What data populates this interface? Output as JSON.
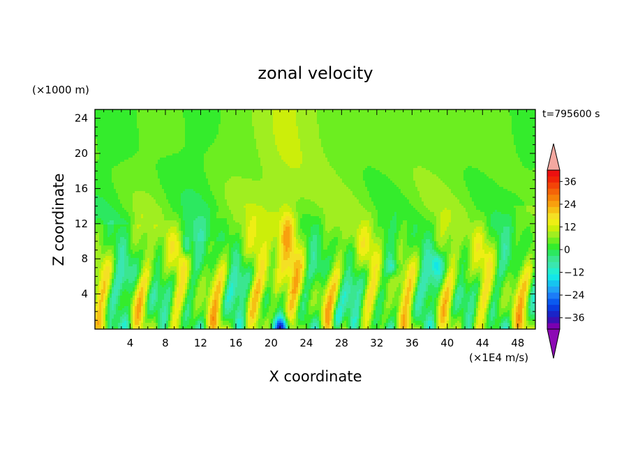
{
  "chart_data": {
    "type": "heatmap",
    "title": "zonal velocity",
    "xlabel": "X coordinate",
    "ylabel": "Z coordinate",
    "y_scale_label": "(×1000 m)",
    "time_label": "t=795600 s",
    "colorbar_unit_label": "(×1E4 m/s)",
    "x_ticks": [
      "4",
      "8",
      "12",
      "16",
      "20",
      "24",
      "28",
      "32",
      "36",
      "40",
      "44",
      "48"
    ],
    "y_ticks": [
      "4",
      "8",
      "12",
      "16",
      "20",
      "24"
    ],
    "xlim": [
      0,
      50
    ],
    "ylim": [
      0,
      25
    ],
    "colorbar": {
      "labels": [
        "36",
        "24",
        "12",
        "0",
        "−12",
        "−24",
        "−36"
      ],
      "levels": [
        -42,
        -39,
        -36,
        -33,
        -30,
        -27,
        -24,
        -21,
        -18,
        -15,
        -12,
        -9,
        -6,
        -3,
        0,
        3,
        6,
        9,
        12,
        15,
        18,
        21,
        24,
        27,
        30,
        33,
        36,
        39,
        42
      ],
      "colors": [
        "#7a00b0",
        "#3a10b4",
        "#1a24c8",
        "#0a3ce0",
        "#0a5af0",
        "#1c7cf8",
        "#20a2f6",
        "#16c4f0",
        "#14e6e8",
        "#22eed0",
        "#3ae6b0",
        "#3ae690",
        "#2ce860",
        "#34ec2c",
        "#6cee20",
        "#a0ee20",
        "#ccee0a",
        "#eeee14",
        "#f4e024",
        "#f6c014",
        "#f8a00e",
        "#f68208",
        "#f46408",
        "#f44408",
        "#f02408",
        "#ec1010",
        "#f4a8a0"
      ],
      "over_color": "#f4a8a0",
      "under_color": "#8c0ab4"
    },
    "field_note": "contour-filled zonal velocity; background near 0 (green) aloft, small-scale alternating cells (yellow positive, cyan/blue negative) below ~12 km, strongest negative core near x≈21, z≈0"
  }
}
